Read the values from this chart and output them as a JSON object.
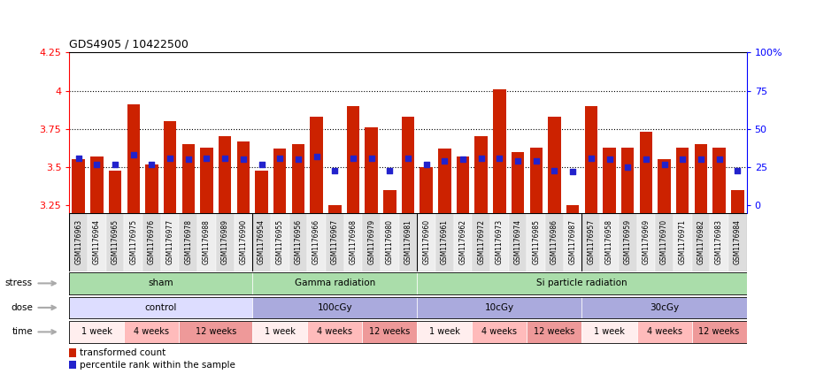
{
  "title": "GDS4905 / 10422500",
  "samples": [
    "GSM1176963",
    "GSM1176964",
    "GSM1176965",
    "GSM1176975",
    "GSM1176976",
    "GSM1176977",
    "GSM1176978",
    "GSM1176988",
    "GSM1176989",
    "GSM1176990",
    "GSM1176954",
    "GSM1176955",
    "GSM1176956",
    "GSM1176966",
    "GSM1176967",
    "GSM1176968",
    "GSM1176979",
    "GSM1176980",
    "GSM1176981",
    "GSM1176960",
    "GSM1176961",
    "GSM1176962",
    "GSM1176972",
    "GSM1176973",
    "GSM1176974",
    "GSM1176985",
    "GSM1176986",
    "GSM1176987",
    "GSM1176957",
    "GSM1176958",
    "GSM1176959",
    "GSM1176969",
    "GSM1176970",
    "GSM1176971",
    "GSM1176982",
    "GSM1176983",
    "GSM1176984"
  ],
  "bar_values": [
    3.55,
    3.57,
    3.48,
    3.91,
    3.52,
    3.8,
    3.65,
    3.63,
    3.7,
    3.67,
    3.48,
    3.62,
    3.65,
    3.83,
    3.25,
    3.9,
    3.76,
    3.35,
    3.83,
    3.5,
    3.62,
    3.57,
    3.7,
    4.01,
    3.6,
    3.63,
    3.83,
    3.25,
    3.9,
    3.63,
    3.63,
    3.73,
    3.55,
    3.63,
    3.65,
    3.63,
    3.35
  ],
  "dot_values": [
    3.56,
    3.52,
    3.52,
    3.58,
    3.52,
    3.56,
    3.55,
    3.56,
    3.56,
    3.55,
    3.52,
    3.56,
    3.55,
    3.57,
    3.48,
    3.56,
    3.56,
    3.48,
    3.56,
    3.52,
    3.54,
    3.55,
    3.56,
    3.56,
    3.54,
    3.54,
    3.48,
    3.47,
    3.56,
    3.55,
    3.5,
    3.55,
    3.52,
    3.55,
    3.55,
    3.55,
    3.48
  ],
  "ylim": [
    3.2,
    4.25
  ],
  "yticks": [
    3.25,
    3.5,
    3.75,
    4.0,
    4.25
  ],
  "ytick_labels": [
    "3.25",
    "3.5",
    "3.75",
    "4",
    "4.25"
  ],
  "y2ticks_pct": [
    0,
    25,
    50,
    75,
    100
  ],
  "y2tick_labels": [
    "0",
    "25",
    "50",
    "75",
    "100%"
  ],
  "hlines": [
    3.5,
    3.75,
    4.0
  ],
  "bar_color": "#cc2200",
  "dot_color": "#2222cc",
  "stress_labels": [
    "sham",
    "Gamma radiation",
    "Si particle radiation"
  ],
  "stress_col_starts": [
    0,
    10,
    19
  ],
  "stress_col_ends": [
    10,
    19,
    37
  ],
  "stress_color": "#aaddaa",
  "dose_labels": [
    "control",
    "100cGy",
    "10cGy",
    "30cGy"
  ],
  "dose_col_starts": [
    0,
    10,
    19,
    28
  ],
  "dose_col_ends": [
    10,
    19,
    28,
    37
  ],
  "dose_color_control": "#ddddff",
  "dose_color_other": "#aaaadd",
  "time_labels": [
    "1 week",
    "4 weeks",
    "12 weeks",
    "1 week",
    "4 weeks",
    "12 weeks",
    "1 week",
    "4 weeks",
    "12 weeks",
    "1 week",
    "4 weeks",
    "12 weeks"
  ],
  "time_col_starts": [
    0,
    3,
    6,
    10,
    13,
    16,
    19,
    22,
    25,
    28,
    31,
    34
  ],
  "time_col_ends": [
    3,
    6,
    10,
    13,
    16,
    19,
    22,
    25,
    28,
    31,
    34,
    37
  ],
  "time_color_1week": "#ffeeee",
  "time_color_4weeks": "#ffbbbb",
  "time_color_12weeks": "#ee9999",
  "legend_items": [
    "transformed count",
    "percentile rank within the sample"
  ],
  "legend_colors": [
    "#cc2200",
    "#2222cc"
  ],
  "label_col_color_odd": "#dddddd",
  "label_col_color_even": "#eeeeee",
  "left_label_color": "#888888",
  "left_arrow_color": "#aaaaaa"
}
